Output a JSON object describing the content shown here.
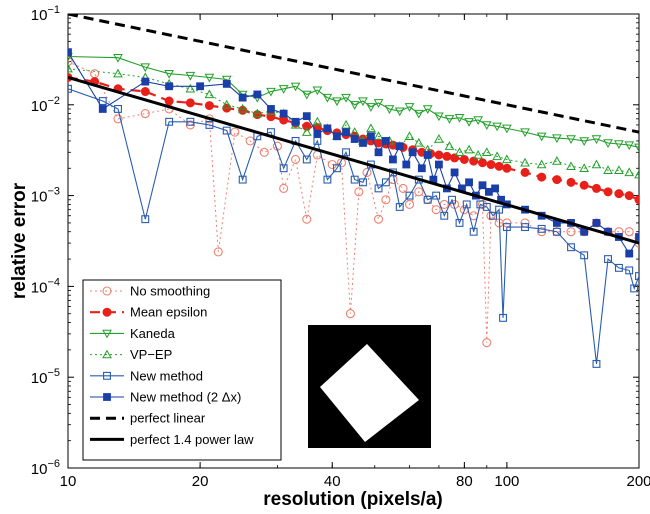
{
  "chart_data": {
    "type": "line",
    "xlabel": "resolution (pixels/a)",
    "ylabel": "relative error",
    "x_scale": "log",
    "y_scale": "log",
    "xlim": [
      10,
      200
    ],
    "ylim": [
      1e-06,
      0.1
    ],
    "x_ticks": [
      10,
      20,
      40,
      80,
      100,
      200
    ],
    "x_tick_labels": [
      "10",
      "20",
      "40",
      "80",
      "100",
      "200"
    ],
    "y_ticks": [
      1e-06,
      1e-05,
      0.0001,
      0.001,
      0.01,
      0.1
    ],
    "y_tick_labels": [
      {
        "base": "10",
        "exp": "−6"
      },
      {
        "base": "10",
        "exp": "−5"
      },
      {
        "base": "10",
        "exp": "−4"
      },
      {
        "base": "10",
        "exp": "−3"
      },
      {
        "base": "10",
        "exp": "−2"
      },
      {
        "base": "10",
        "exp": "−1"
      }
    ],
    "grid": false,
    "legend_position": "bottom-left",
    "series": [
      {
        "name": "No smoothing",
        "color": "#f08070",
        "line": "dotted",
        "marker": "circle-open",
        "points": [
          [
            10,
            0.03
          ],
          [
            11.5,
            0.022
          ],
          [
            13,
            0.007
          ],
          [
            15,
            0.008
          ],
          [
            17,
            0.009
          ],
          [
            19,
            0.006
          ],
          [
            21,
            0.007
          ],
          [
            22,
            0.00024
          ],
          [
            24,
            0.005
          ],
          [
            26,
            0.004
          ],
          [
            28,
            0.003
          ],
          [
            30,
            0.0035
          ],
          [
            31,
            0.0012
          ],
          [
            33,
            0.0025
          ],
          [
            35,
            0.00055
          ],
          [
            37,
            0.0028
          ],
          [
            40,
            0.0022
          ],
          [
            42,
            0.0023
          ],
          [
            44,
            5e-05
          ],
          [
            46,
            0.0011
          ],
          [
            48,
            0.0018
          ],
          [
            51,
            0.00055
          ],
          [
            53,
            0.0009
          ],
          [
            55,
            0.0015
          ],
          [
            58,
            0.0012
          ],
          [
            60,
            0.0008
          ],
          [
            63,
            0.0011
          ],
          [
            66,
            0.0009
          ],
          [
            69,
            0.0007
          ],
          [
            72,
            0.0008
          ],
          [
            76,
            0.0008
          ],
          [
            80,
            0.0007
          ],
          [
            84,
            0.0006
          ],
          [
            88,
            0.0008
          ],
          [
            90,
            2.4e-05
          ],
          [
            92,
            0.0006
          ],
          [
            96,
            0.0005
          ],
          [
            100,
            0.0005
          ],
          [
            110,
            0.0005
          ],
          [
            120,
            0.0004
          ],
          [
            130,
            0.0004
          ],
          [
            140,
            0.0004
          ],
          [
            150,
            0.0004
          ],
          [
            160,
            0.0005
          ],
          [
            170,
            0.0004
          ],
          [
            180,
            0.0004
          ],
          [
            190,
            0.0004
          ],
          [
            200,
            0.0003
          ]
        ]
      },
      {
        "name": "Mean epsilon",
        "color": "#e8201a",
        "line": "dashed",
        "marker": "circle-filled",
        "points": [
          [
            10,
            0.02
          ],
          [
            11.5,
            0.018
          ],
          [
            13,
            0.015
          ],
          [
            15,
            0.014
          ],
          [
            17,
            0.011
          ],
          [
            19,
            0.0105
          ],
          [
            21,
            0.0098
          ],
          [
            23,
            0.0092
          ],
          [
            25,
            0.0087
          ],
          [
            27,
            0.0078
          ],
          [
            29,
            0.0074
          ],
          [
            31,
            0.0068
          ],
          [
            33,
            0.0063
          ],
          [
            35,
            0.0058
          ],
          [
            37,
            0.0056
          ],
          [
            39,
            0.0052
          ],
          [
            41,
            0.0049
          ],
          [
            43,
            0.0047
          ],
          [
            45,
            0.0045
          ],
          [
            47,
            0.0042
          ],
          [
            49,
            0.004
          ],
          [
            51,
            0.0038
          ],
          [
            53,
            0.0037
          ],
          [
            55,
            0.0036
          ],
          [
            58,
            0.0034
          ],
          [
            61,
            0.0032
          ],
          [
            64,
            0.003
          ],
          [
            67,
            0.0029
          ],
          [
            70,
            0.0028
          ],
          [
            73,
            0.0027
          ],
          [
            76,
            0.0026
          ],
          [
            80,
            0.0025
          ],
          [
            84,
            0.0024
          ],
          [
            88,
            0.0023
          ],
          [
            92,
            0.0022
          ],
          [
            96,
            0.0021
          ],
          [
            100,
            0.002
          ],
          [
            110,
            0.0018
          ],
          [
            120,
            0.0016
          ],
          [
            130,
            0.0015
          ],
          [
            140,
            0.0014
          ],
          [
            150,
            0.0013
          ],
          [
            160,
            0.0012
          ],
          [
            170,
            0.0011
          ],
          [
            180,
            0.00105
          ],
          [
            190,
            0.001
          ],
          [
            200,
            0.0009
          ]
        ]
      },
      {
        "name": "Kaneda",
        "color": "#22a02a",
        "line": "solid",
        "marker": "triangle-down-open",
        "points": [
          [
            10,
            0.034
          ],
          [
            13,
            0.033
          ],
          [
            15,
            0.026
          ],
          [
            17,
            0.022
          ],
          [
            19,
            0.021
          ],
          [
            21,
            0.02
          ],
          [
            23,
            0.019
          ],
          [
            25,
            0.013
          ],
          [
            27,
            0.012
          ],
          [
            29,
            0.014
          ],
          [
            31,
            0.015
          ],
          [
            33,
            0.016
          ],
          [
            35,
            0.013
          ],
          [
            37,
            0.0145
          ],
          [
            39,
            0.012
          ],
          [
            41,
            0.011
          ],
          [
            43,
            0.012
          ],
          [
            45,
            0.01
          ],
          [
            47,
            0.011
          ],
          [
            49,
            0.0095
          ],
          [
            51,
            0.0105
          ],
          [
            54,
            0.009
          ],
          [
            57,
            0.0085
          ],
          [
            60,
            0.0095
          ],
          [
            63,
            0.008
          ],
          [
            66,
            0.009
          ],
          [
            70,
            0.0075
          ],
          [
            74,
            0.007
          ],
          [
            78,
            0.0072
          ],
          [
            82,
            0.0065
          ],
          [
            86,
            0.0068
          ],
          [
            90,
            0.006
          ],
          [
            95,
            0.0058
          ],
          [
            100,
            0.0055
          ],
          [
            110,
            0.005
          ],
          [
            120,
            0.0045
          ],
          [
            130,
            0.0043
          ],
          [
            140,
            0.0042
          ],
          [
            150,
            0.004
          ],
          [
            160,
            0.0042
          ],
          [
            170,
            0.0038
          ],
          [
            180,
            0.0037
          ],
          [
            190,
            0.0036
          ],
          [
            200,
            0.0034
          ]
        ]
      },
      {
        "name": "VP−EP",
        "color": "#22a02a",
        "line": "dotted",
        "marker": "triangle-up-open",
        "points": [
          [
            10,
            0.025
          ],
          [
            13,
            0.022
          ],
          [
            15,
            0.02
          ],
          [
            17,
            0.017
          ],
          [
            19,
            0.015
          ],
          [
            21,
            0.013
          ],
          [
            23,
            0.01
          ],
          [
            25,
            0.009
          ],
          [
            27,
            0.008
          ],
          [
            29,
            0.0085
          ],
          [
            31,
            0.008
          ],
          [
            33,
            0.006
          ],
          [
            35,
            0.005
          ],
          [
            37,
            0.0065
          ],
          [
            39,
            0.0055
          ],
          [
            41,
            0.0045
          ],
          [
            43,
            0.006
          ],
          [
            45,
            0.005
          ],
          [
            47,
            0.004
          ],
          [
            49,
            0.0055
          ],
          [
            51,
            0.0045
          ],
          [
            54,
            0.004
          ],
          [
            57,
            0.0035
          ],
          [
            60,
            0.0045
          ],
          [
            63,
            0.0038
          ],
          [
            66,
            0.0032
          ],
          [
            70,
            0.0042
          ],
          [
            74,
            0.0035
          ],
          [
            78,
            0.003
          ],
          [
            82,
            0.0032
          ],
          [
            86,
            0.0028
          ],
          [
            90,
            0.003
          ],
          [
            95,
            0.0027
          ],
          [
            100,
            0.0025
          ],
          [
            110,
            0.0023
          ],
          [
            120,
            0.0022
          ],
          [
            130,
            0.0024
          ],
          [
            140,
            0.0021
          ],
          [
            150,
            0.002
          ],
          [
            160,
            0.0022
          ],
          [
            170,
            0.0019
          ],
          [
            180,
            0.0019
          ],
          [
            190,
            0.0018
          ],
          [
            200,
            0.0017
          ]
        ]
      },
      {
        "name": "New method",
        "color": "#2a5db0",
        "line": "solid",
        "marker": "square-open",
        "points": [
          [
            10,
            0.015
          ],
          [
            12,
            0.011
          ],
          [
            13,
            0.009
          ],
          [
            15,
            0.00055
          ],
          [
            17,
            0.0065
          ],
          [
            19,
            0.0065
          ],
          [
            21,
            0.006
          ],
          [
            23,
            0.0052
          ],
          [
            25,
            0.0015
          ],
          [
            27,
            0.0045
          ],
          [
            29,
            0.005
          ],
          [
            31,
            0.002
          ],
          [
            33,
            0.004
          ],
          [
            35,
            0.0025
          ],
          [
            37,
            0.004
          ],
          [
            39,
            0.0015
          ],
          [
            41,
            0.002
          ],
          [
            43,
            0.003
          ],
          [
            45,
            0.0015
          ],
          [
            47,
            0.0014
          ],
          [
            49,
            0.0022
          ],
          [
            51,
            0.0012
          ],
          [
            53,
            0.0014
          ],
          [
            55,
            0.0018
          ],
          [
            57,
            0.00075
          ],
          [
            60,
            0.001
          ],
          [
            63,
            0.0015
          ],
          [
            66,
            0.0009
          ],
          [
            69,
            0.001
          ],
          [
            72,
            0.0006
          ],
          [
            75,
            0.0009
          ],
          [
            78,
            0.0005
          ],
          [
            81,
            0.0008
          ],
          [
            84,
            0.0004
          ],
          [
            87,
            0.0008
          ],
          [
            90,
            0.00075
          ],
          [
            93,
            0.0006
          ],
          [
            96,
            0.0007
          ],
          [
            98,
            4.5e-05
          ],
          [
            100,
            0.00045
          ],
          [
            110,
            0.00045
          ],
          [
            120,
            0.00043
          ],
          [
            130,
            0.0004
          ],
          [
            140,
            0.00027
          ],
          [
            150,
            0.00022
          ],
          [
            160,
            1.4e-05
          ],
          [
            170,
            0.0002
          ],
          [
            180,
            0.00016
          ],
          [
            190,
            0.00015
          ],
          [
            195,
            9.5e-05
          ],
          [
            200,
            0.00013
          ]
        ]
      },
      {
        "name": "New method (2 Δx)",
        "color": "#1a3fa8",
        "line": "solid",
        "marker": "square-filled",
        "points": [
          [
            10,
            0.038
          ],
          [
            12,
            0.009
          ],
          [
            15,
            0.018
          ],
          [
            17,
            0.016
          ],
          [
            20,
            0.016
          ],
          [
            23,
            0.017
          ],
          [
            25,
            0.012
          ],
          [
            27,
            0.013
          ],
          [
            29,
            0.009
          ],
          [
            31,
            0.008
          ],
          [
            33,
            0.0065
          ],
          [
            35,
            0.0075
          ],
          [
            37,
            0.0048
          ],
          [
            39,
            0.0055
          ],
          [
            41,
            0.0045
          ],
          [
            43,
            0.005
          ],
          [
            45,
            0.0042
          ],
          [
            47,
            0.0038
          ],
          [
            49,
            0.0045
          ],
          [
            51,
            0.003
          ],
          [
            53,
            0.004
          ],
          [
            55,
            0.0025
          ],
          [
            57,
            0.0035
          ],
          [
            59,
            0.0022
          ],
          [
            61,
            0.003
          ],
          [
            64,
            0.002
          ],
          [
            66,
            0.0028
          ],
          [
            68,
            0.0015
          ],
          [
            70,
            0.0022
          ],
          [
            73,
            0.0012
          ],
          [
            76,
            0.0018
          ],
          [
            79,
            0.0012
          ],
          [
            82,
            0.0014
          ],
          [
            85,
            0.001
          ],
          [
            88,
            0.0013
          ],
          [
            91,
            0.0011
          ],
          [
            94,
            0.0012
          ],
          [
            97,
            0.0009
          ],
          [
            100,
            0.0008
          ],
          [
            110,
            0.0007
          ],
          [
            120,
            0.0006
          ],
          [
            130,
            0.0005
          ],
          [
            140,
            0.0005
          ],
          [
            150,
            0.0004
          ],
          [
            160,
            0.0005
          ],
          [
            170,
            0.0004
          ],
          [
            180,
            0.00035
          ],
          [
            190,
            0.00023
          ],
          [
            200,
            0.00035
          ]
        ]
      },
      {
        "name": "perfect linear",
        "color": "#000000",
        "line": "dashed-thick",
        "marker": "none",
        "points": [
          [
            10,
            0.1
          ],
          [
            200,
            0.005
          ]
        ]
      },
      {
        "name": "perfect 1.4 power law",
        "color": "#000000",
        "line": "solid-thick",
        "marker": "none",
        "points": [
          [
            10,
            0.02
          ],
          [
            200,
            0.0003
          ]
        ]
      }
    ]
  }
}
